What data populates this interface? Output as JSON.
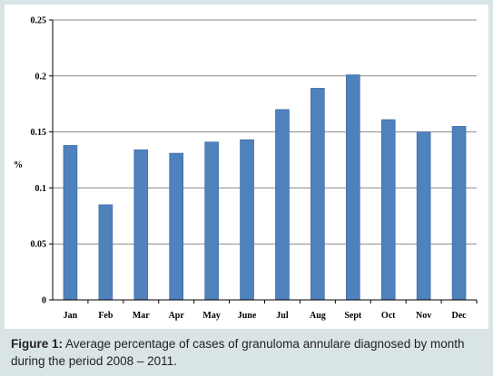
{
  "caption": {
    "label": "Figure 1:",
    "text": " Average percentage of cases of granuloma annulare diagnosed by month during the period 2008 – 2011."
  },
  "chart_data": {
    "type": "bar",
    "title": "",
    "xlabel": "",
    "ylabel": "%",
    "ylim": [
      0,
      0.25
    ],
    "yticks": [
      0,
      0.05,
      0.1,
      0.15,
      0.2,
      0.25
    ],
    "ytick_labels": [
      "0",
      "0.05",
      "0.1",
      "0.15",
      "0.2",
      "0.25"
    ],
    "grid": "horizontal major lines",
    "categories": [
      "Jan",
      "Feb",
      "Mar",
      "Apr",
      "May",
      "June",
      "Jul",
      "Aug",
      "Sept",
      "Oct",
      "Nov",
      "Dec"
    ],
    "values": [
      0.138,
      0.085,
      0.134,
      0.131,
      0.141,
      0.143,
      0.17,
      0.189,
      0.201,
      0.161,
      0.15,
      0.155
    ],
    "bar_color": "#4f81bd"
  }
}
